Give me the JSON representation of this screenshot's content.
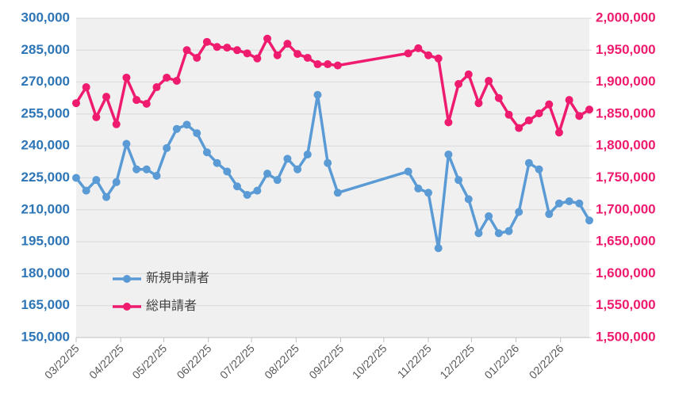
{
  "chart_data": {
    "type": "line",
    "x": [
      "03/22/25",
      "03/29/25",
      "04/05/25",
      "04/12/25",
      "04/19/25",
      "04/26/25",
      "05/03/25",
      "05/10/25",
      "05/17/25",
      "05/24/25",
      "05/31/25",
      "06/07/25",
      "06/14/25",
      "06/21/25",
      "06/28/25",
      "07/05/25",
      "07/12/25",
      "07/19/25",
      "07/26/25",
      "08/02/25",
      "08/09/25",
      "08/16/25",
      "08/23/25",
      "08/30/25",
      "09/06/25",
      "09/13/25",
      "09/20/25",
      "11/08/25",
      "11/15/25",
      "11/22/25",
      "11/29/25",
      "12/06/25",
      "12/13/25",
      "12/20/25",
      "12/27/25",
      "01/03/26",
      "01/10/26",
      "01/17/26",
      "01/24/26",
      "01/31/26",
      "02/07/26",
      "02/14/26",
      "02/21/26",
      "02/28/26",
      "03/07/26",
      "03/14/26"
    ],
    "xlim": [
      "03/22/25",
      "03/14/26"
    ],
    "xticks": [
      "03/22/25",
      "04/22/25",
      "05/22/25",
      "06/22/25",
      "07/22/25",
      "08/22/25",
      "09/22/25",
      "10/22/25",
      "11/22/25",
      "12/22/25",
      "01/22/26",
      "02/22/26"
    ],
    "series": [
      {
        "name": "新規申請者",
        "color": "#5b9bd5",
        "axis": "y",
        "values": [
          225000,
          219000,
          224000,
          216000,
          223000,
          241000,
          229000,
          229000,
          226000,
          239000,
          248000,
          250000,
          246000,
          237000,
          232000,
          228000,
          221000,
          217000,
          219000,
          227000,
          224000,
          234000,
          229000,
          236000,
          264000,
          232000,
          218000,
          228000,
          220000,
          218000,
          192000,
          236000,
          224000,
          215000,
          199000,
          207000,
          199000,
          200000,
          209000,
          232000,
          229000,
          208000,
          213000,
          214000,
          213000,
          205000
        ]
      },
      {
        "name": "総申請者",
        "color": "#ee1b6e",
        "axis": "y2",
        "values": [
          1867000,
          1892000,
          1845000,
          1877000,
          1834000,
          1907000,
          1872000,
          1866000,
          1892000,
          1907000,
          1902000,
          1950000,
          1938000,
          1963000,
          1955000,
          1954000,
          1950000,
          1945000,
          1937000,
          1968000,
          1942000,
          1960000,
          1944000,
          1938000,
          1928000,
          1928000,
          1926000,
          1945000,
          1953000,
          1942000,
          1937000,
          1837000,
          1897000,
          1912000,
          1867000,
          1902000,
          1875000,
          1849000,
          1828000,
          1840000,
          1851000,
          1865000,
          1821000,
          1872000,
          1847000,
          1857000
        ]
      }
    ],
    "ylim": [
      150000,
      300000
    ],
    "yticks": [
      {
        "value": 150000,
        "label": "150,000"
      },
      {
        "value": 165000,
        "label": "165,000"
      },
      {
        "value": 180000,
        "label": "180,000"
      },
      {
        "value": 195000,
        "label": "195,000"
      },
      {
        "value": 210000,
        "label": "210,000"
      },
      {
        "value": 225000,
        "label": "225,000"
      },
      {
        "value": 240000,
        "label": "240,000"
      },
      {
        "value": 255000,
        "label": "255,000"
      },
      {
        "value": 270000,
        "label": "270,000"
      },
      {
        "value": 285000,
        "label": "285,000"
      },
      {
        "value": 300000,
        "label": "300,000"
      }
    ],
    "y2lim": [
      1500000,
      2000000
    ],
    "y2ticks": [
      {
        "value": 1500000,
        "label": "1,500,000"
      },
      {
        "value": 1550000,
        "label": "1,550,000"
      },
      {
        "value": 1600000,
        "label": "1,600,000"
      },
      {
        "value": 1650000,
        "label": "1,650,000"
      },
      {
        "value": 1700000,
        "label": "1,700,000"
      },
      {
        "value": 1750000,
        "label": "1,750,000"
      },
      {
        "value": 1800000,
        "label": "1,800,000"
      },
      {
        "value": 1850000,
        "label": "1,850,000"
      },
      {
        "value": 1900000,
        "label": "1,900,000"
      },
      {
        "value": 1950000,
        "label": "1,950,000"
      },
      {
        "value": 2000000,
        "label": "2,000,000"
      }
    ],
    "y_color": "#2e75b6",
    "y2_color": "#ee1b6e",
    "grid": true,
    "legend": "lower left"
  }
}
